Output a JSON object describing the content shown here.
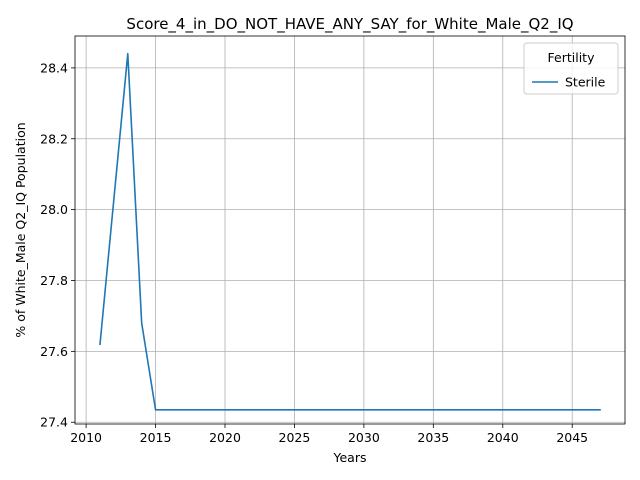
{
  "chart_data": {
    "type": "line",
    "title": "Score_4_in_DO_NOT_HAVE_ANY_SAY_for_White_Male_Q2_IQ",
    "xlabel": "Years",
    "ylabel": "% of White_Male Q2_IQ Population",
    "xlim": [
      2009.2,
      2048.8
    ],
    "ylim": [
      27.395,
      28.49
    ],
    "xticks": [
      2010,
      2015,
      2020,
      2025,
      2030,
      2035,
      2040,
      2045
    ],
    "yticks": [
      27.4,
      27.6,
      27.8,
      28.0,
      28.2,
      28.4
    ],
    "ytick_labels": [
      "27.4",
      "27.6",
      "27.8",
      "28.0",
      "28.2",
      "28.4"
    ],
    "grid": true,
    "legend": {
      "title": "Fertility",
      "placement": "top-right"
    },
    "series": [
      {
        "name": "Sterile",
        "color": "#1f77b4",
        "x": [
          2011,
          2013,
          2014,
          2015,
          2047
        ],
        "y": [
          27.62,
          28.44,
          27.68,
          27.435,
          27.435
        ]
      }
    ]
  }
}
